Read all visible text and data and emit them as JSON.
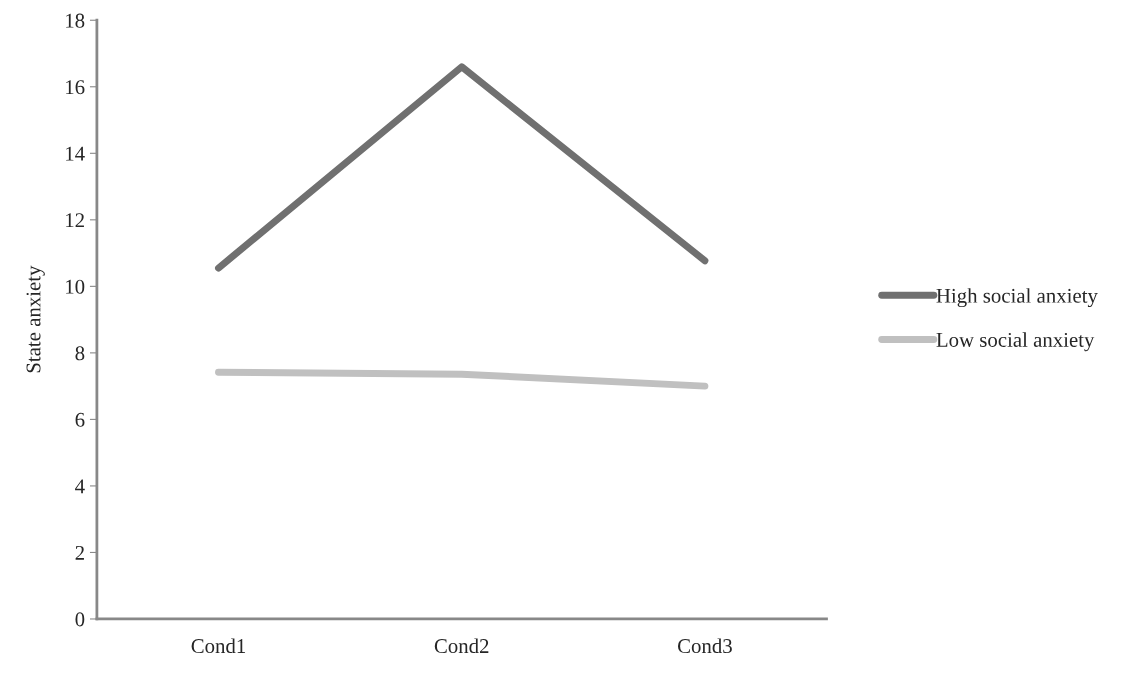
{
  "chart_data": {
    "type": "line",
    "ylabel": "State anxiety",
    "categories": [
      "Cond1",
      "Cond2",
      "Cond3"
    ],
    "series": [
      {
        "name": "High social anxiety",
        "color": "#707070",
        "values": [
          10.55,
          16.6,
          10.77
        ]
      },
      {
        "name": "Low social anxiety",
        "color": "#c0c0c0",
        "values": [
          7.42,
          7.36,
          7.0
        ]
      }
    ],
    "ylim": [
      0,
      18
    ],
    "yticks": [
      0,
      2,
      4,
      6,
      8,
      10,
      12,
      14,
      16,
      18
    ],
    "grid": false,
    "legend": "right",
    "marker": "none",
    "line_style": "solid"
  }
}
